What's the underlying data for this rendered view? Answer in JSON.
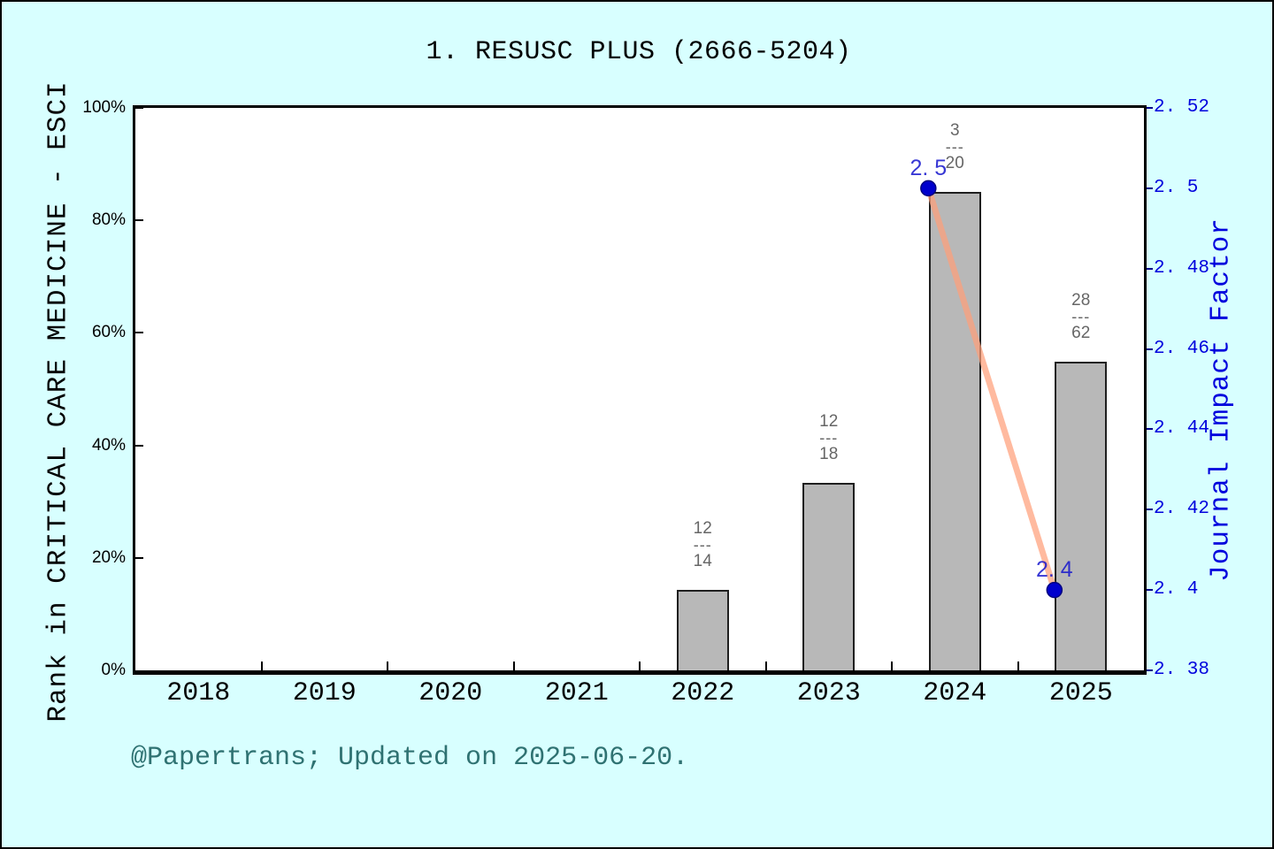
{
  "title": "1. RESUSC PLUS (2666-5204)",
  "footer": "@Papertrans; Updated on 2025-06-20.",
  "colors": {
    "background": "#d8ffff",
    "plot_background": "#ffffff",
    "frame": "#000000",
    "bar_fill": "#b8b8b8",
    "bar_edge": "#1f1f1f",
    "fraction_text": "#666666",
    "line": "#ffa07a",
    "marker": "#0000cd",
    "marker_edge": "#000080",
    "right_axis_text": "#0000dd",
    "footer_text": "#2f7272"
  },
  "chart_data": {
    "type": "bar+line",
    "title": "1. RESUSC PLUS (2666-5204)",
    "grid": false,
    "legend": "none",
    "categories": [
      "2018",
      "2019",
      "2020",
      "2021",
      "2022",
      "2023",
      "2024",
      "2025"
    ],
    "bar_series": {
      "name": "Rank in CRITICAL CARE MEDICINE - ESCI (percentile)",
      "values": [
        null,
        null,
        null,
        null,
        14.29,
        33.33,
        85.0,
        54.84
      ],
      "rank_labels": [
        null,
        null,
        null,
        null,
        {
          "num": "12",
          "den": "14"
        },
        {
          "num": "12",
          "den": "18"
        },
        {
          "num": "3",
          "den": "20"
        },
        {
          "num": "28",
          "den": "62"
        }
      ]
    },
    "line_series": {
      "name": "Journal Impact Factor",
      "points": [
        {
          "category": "2024",
          "value": 2.5,
          "label": "2. 5"
        },
        {
          "category": "2025",
          "value": 2.4,
          "label": "2. 4"
        }
      ],
      "x_offset_slots": -0.21
    },
    "left_axis": {
      "label": "Rank in CRITICAL CARE MEDICINE - ESCI",
      "range": [
        0,
        100
      ],
      "ticks": [
        {
          "label": "0%",
          "value": 0
        },
        {
          "label": "20%",
          "value": 20
        },
        {
          "label": "40%",
          "value": 40
        },
        {
          "label": "60%",
          "value": 60
        },
        {
          "label": "80%",
          "value": 80
        },
        {
          "label": "100%",
          "value": 100
        }
      ]
    },
    "right_axis": {
      "label": "Journal Impact Factor",
      "range": [
        2.38,
        2.52
      ],
      "ticks": [
        {
          "label": "2. 38",
          "value": 2.38
        },
        {
          "label": "2. 4",
          "value": 2.4
        },
        {
          "label": "2. 42",
          "value": 2.42
        },
        {
          "label": "2. 44",
          "value": 2.44
        },
        {
          "label": "2. 46",
          "value": 2.46
        },
        {
          "label": "2. 48",
          "value": 2.48
        },
        {
          "label": "2. 5",
          "value": 2.5
        },
        {
          "label": "2. 52",
          "value": 2.52
        }
      ]
    },
    "x_axis": {
      "tick_labels": [
        "2018",
        "2019",
        "2020",
        "2021",
        "2022",
        "2023",
        "2024",
        "2025"
      ],
      "minor_ticks_between_categories": true
    },
    "fraction_separator": "---"
  }
}
